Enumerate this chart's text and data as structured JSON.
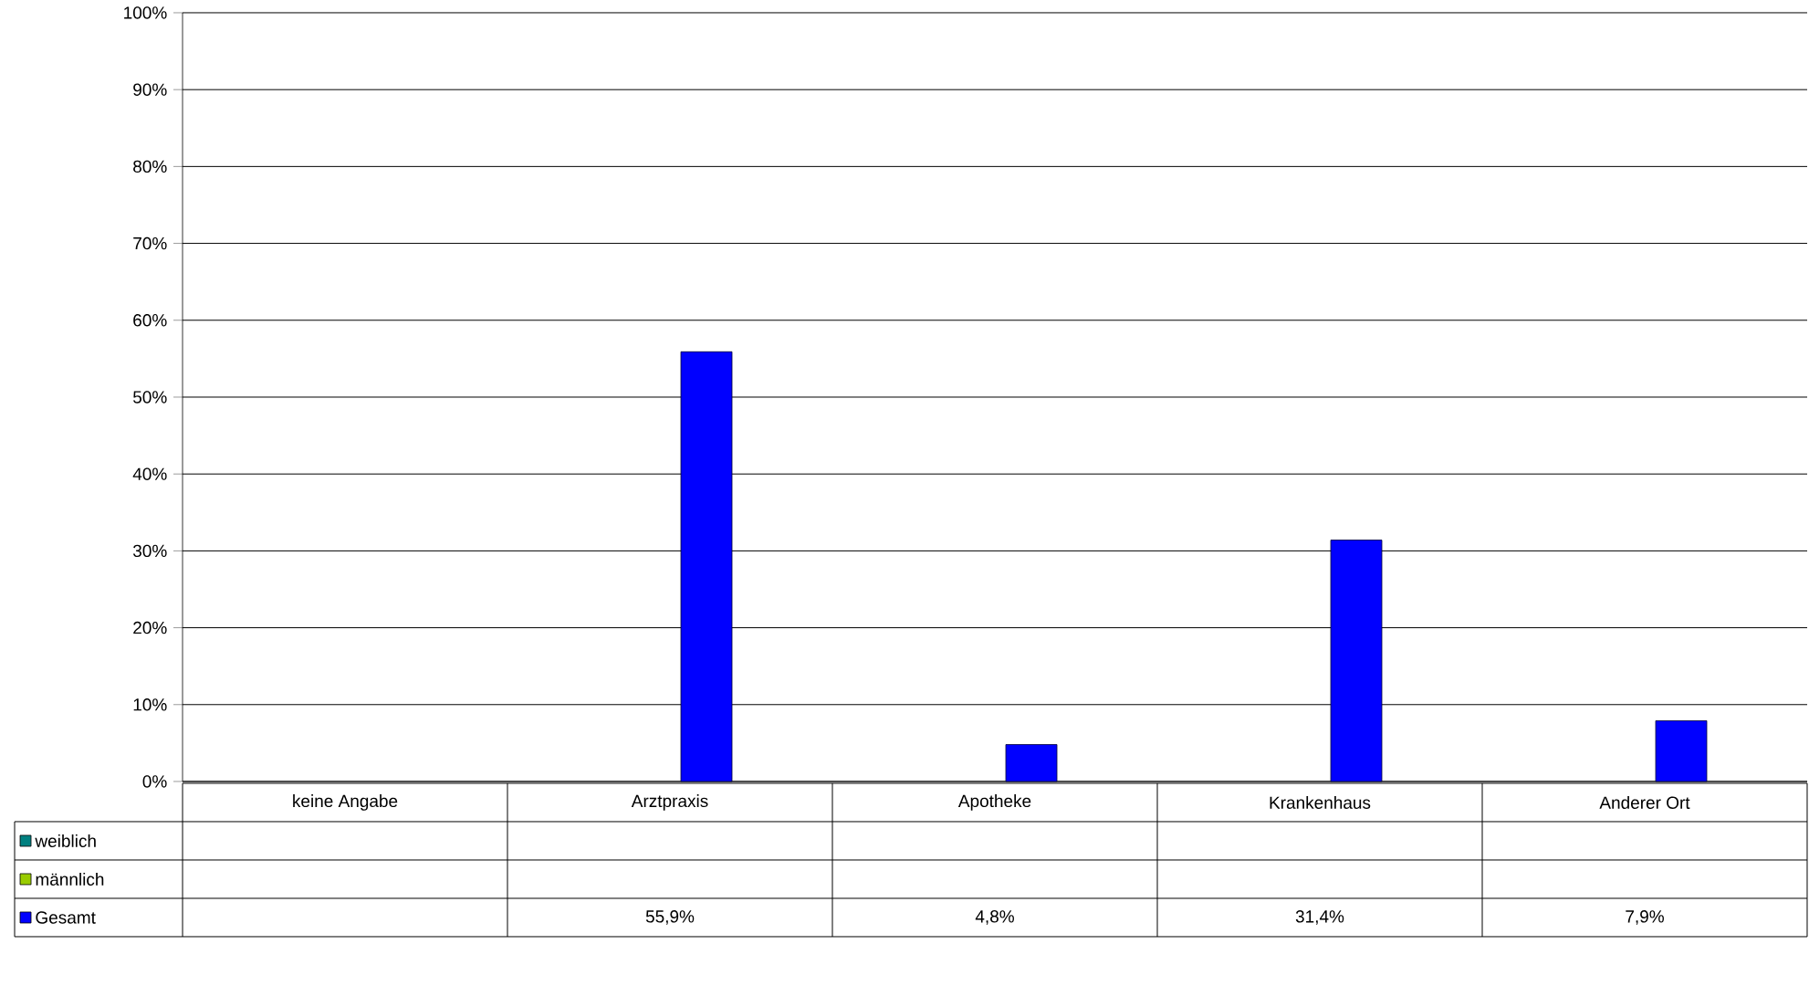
{
  "chart_data": {
    "type": "bar",
    "categories": [
      "keine Angabe",
      "Arztpraxis",
      "Apotheke",
      "Krankenhaus",
      "Anderer Ort"
    ],
    "series": [
      {
        "name": "weiblich",
        "color": "#008080",
        "values": [
          null,
          null,
          null,
          null,
          null
        ]
      },
      {
        "name": "männlich",
        "color": "#99cc00",
        "values": [
          null,
          null,
          null,
          null,
          null
        ]
      },
      {
        "name": "Gesamt",
        "color": "#0000ff",
        "values": [
          null,
          55.9,
          4.8,
          31.4,
          7.9
        ],
        "value_labels": [
          null,
          "55,9%",
          "4,8%",
          "31,4%",
          "7,9%"
        ]
      }
    ],
    "ylim": [
      0,
      100
    ],
    "yticks": [
      {
        "value": 0,
        "label": "0%"
      },
      {
        "value": 10,
        "label": "10%"
      },
      {
        "value": 20,
        "label": "20%"
      },
      {
        "value": 30,
        "label": "30%"
      },
      {
        "value": 40,
        "label": "40%"
      },
      {
        "value": 50,
        "label": "50%"
      },
      {
        "value": 60,
        "label": "60%"
      },
      {
        "value": 70,
        "label": "70%"
      },
      {
        "value": 80,
        "label": "80%"
      },
      {
        "value": 90,
        "label": "90%"
      },
      {
        "value": 100,
        "label": "100%"
      }
    ],
    "grid": "y",
    "legend": "bottom left"
  }
}
